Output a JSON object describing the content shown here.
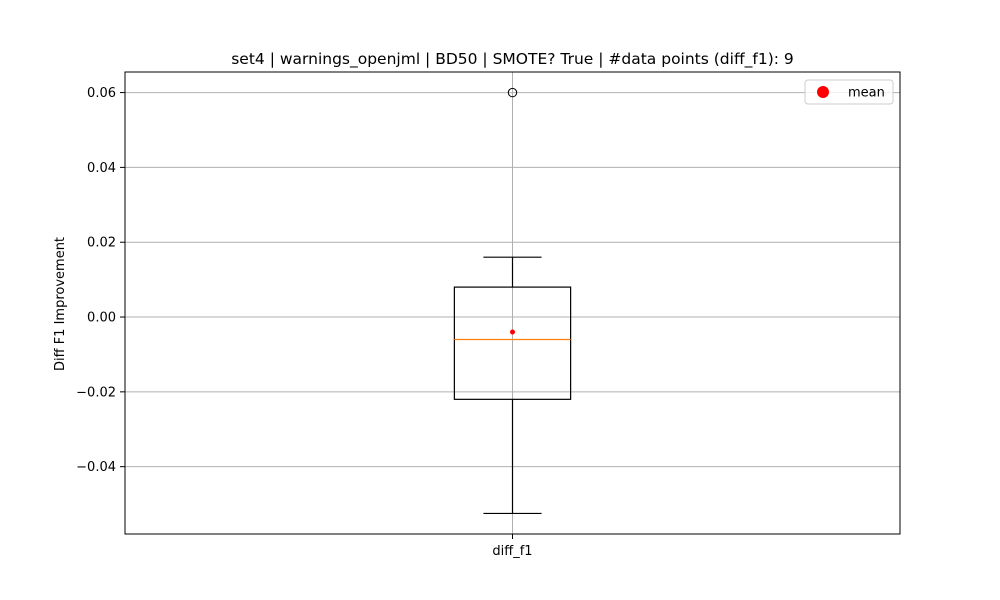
{
  "chart_data": {
    "type": "box",
    "title": "set4 | warnings_openjml | BD50 | SMOTE? True | #data points (diff_f1): 9",
    "xlabel": "",
    "ylabel": "Diff F1 Improvement",
    "categories": [
      "diff_f1"
    ],
    "ylim": [
      -0.058,
      0.0655
    ],
    "yticks": [
      -0.04,
      -0.02,
      0.0,
      0.02,
      0.04,
      0.06
    ],
    "ytick_labels": [
      "−0.04",
      "−0.02",
      "0.00",
      "0.02",
      "0.04",
      "0.06"
    ],
    "grid": true,
    "legend": {
      "position": "top-right",
      "entries": [
        {
          "label": "mean",
          "color": "#ff0000",
          "marker": "circle"
        }
      ]
    },
    "boxes": [
      {
        "name": "diff_f1",
        "whisker_low": -0.0525,
        "q1": -0.022,
        "median": -0.006,
        "q3": 0.008,
        "whisker_high": 0.016,
        "mean": -0.004,
        "outliers": [
          0.06
        ]
      }
    ],
    "colors": {
      "box": "#000000",
      "median": "#ff7f0e",
      "mean": "#ff0000",
      "grid": "#b0b0b0",
      "outlier": "#000000"
    }
  }
}
